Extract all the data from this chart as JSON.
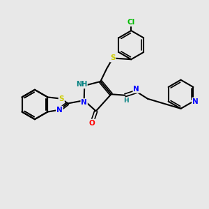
{
  "background_color": "#e8e8e8",
  "bond_color": "#000000",
  "atom_colors": {
    "S": "#cccc00",
    "N": "#0000ff",
    "O": "#ff0000",
    "Cl": "#00bb00",
    "H_label": "#008080",
    "C": "#000000"
  },
  "figsize": [
    3.0,
    3.0
  ],
  "dpi": 100
}
